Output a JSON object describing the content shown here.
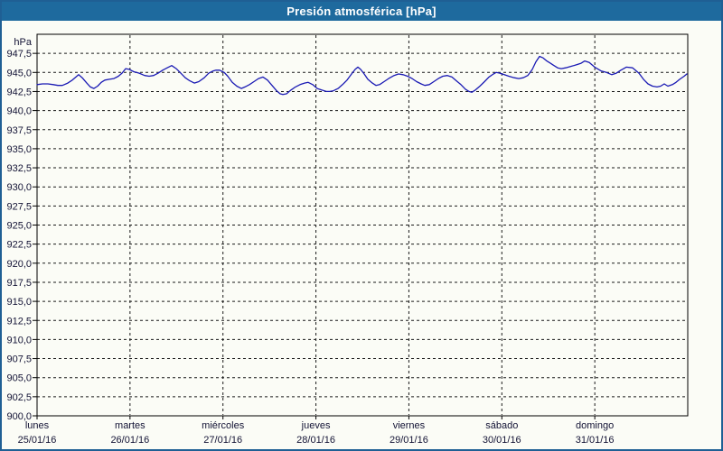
{
  "window": {
    "title": "Presión atmosférica [hPa]"
  },
  "colors": {
    "frame_border": "#1f5f94",
    "titlebar_bg": "#1e6a9e",
    "titlebar_text": "#ffffff",
    "chart_bg": "#fbfcf6",
    "plot_border": "#000000",
    "grid": "#1a1a1a",
    "axis_text": "#131335",
    "line": "#1a1ab4"
  },
  "chart_data": {
    "type": "line",
    "title": "Presión atmosférica [hPa]",
    "unit_label": "hPa",
    "xlabel": "",
    "ylabel": "",
    "ylim": [
      900,
      950
    ],
    "y_tick_step": 2.5,
    "y_tick_labels": [
      "947,5",
      "945,0",
      "942,5",
      "940,0",
      "937,5",
      "935,0",
      "932,5",
      "930,0",
      "927,5",
      "925,0",
      "922,5",
      "920,0",
      "917,5",
      "915,0",
      "912,5",
      "910,0",
      "907,5",
      "905,0",
      "902,5",
      "900,0"
    ],
    "grid": "dashed",
    "legend": "none",
    "x_categories": [
      {
        "day": "lunes",
        "date": "25/01/16"
      },
      {
        "day": "martes",
        "date": "26/01/16"
      },
      {
        "day": "miércoles",
        "date": "27/01/16"
      },
      {
        "day": "jueves",
        "date": "28/01/16"
      },
      {
        "day": "viernes",
        "date": "29/01/16"
      },
      {
        "day": "sábado",
        "date": "30/01/16"
      },
      {
        "day": "domingo",
        "date": "31/01/16"
      }
    ],
    "series": [
      {
        "name": "Presión atmosférica",
        "unit": "hPa",
        "color": "#1a1ab4",
        "x_unit": "days_since_monday_00h",
        "points": [
          [
            0,
            943.4
          ],
          [
            0.058,
            943.5
          ],
          [
            0.117,
            943.5
          ],
          [
            0.175,
            943.4
          ],
          [
            0.224,
            943.3
          ],
          [
            0.272,
            943.3
          ],
          [
            0.331,
            943.6
          ],
          [
            0.379,
            944.0
          ],
          [
            0.428,
            944.5
          ],
          [
            0.447,
            944.7
          ],
          [
            0.486,
            944.3
          ],
          [
            0.535,
            943.6
          ],
          [
            0.574,
            943.1
          ],
          [
            0.612,
            942.9
          ],
          [
            0.651,
            943.2
          ],
          [
            0.69,
            943.7
          ],
          [
            0.729,
            944.0
          ],
          [
            0.778,
            944.1
          ],
          [
            0.826,
            944.2
          ],
          [
            0.875,
            944.5
          ],
          [
            0.914,
            944.9
          ],
          [
            0.953,
            945.5
          ],
          [
            0.992,
            945.4
          ],
          [
            1.04,
            945.1
          ],
          [
            1.099,
            944.9
          ],
          [
            1.157,
            944.6
          ],
          [
            1.206,
            944.5
          ],
          [
            1.254,
            944.6
          ],
          [
            1.303,
            944.9
          ],
          [
            1.351,
            945.3
          ],
          [
            1.4,
            945.6
          ],
          [
            1.449,
            945.9
          ],
          [
            1.497,
            945.5
          ],
          [
            1.546,
            944.9
          ],
          [
            1.594,
            944.3
          ],
          [
            1.643,
            943.9
          ],
          [
            1.692,
            943.6
          ],
          [
            1.74,
            943.8
          ],
          [
            1.799,
            944.3
          ],
          [
            1.847,
            944.9
          ],
          [
            1.896,
            945.2
          ],
          [
            1.925,
            945.3
          ],
          [
            1.964,
            945.3
          ],
          [
            2.013,
            945.0
          ],
          [
            2.051,
            944.5
          ],
          [
            2.1,
            943.7
          ],
          [
            2.149,
            943.2
          ],
          [
            2.197,
            942.9
          ],
          [
            2.236,
            943.1
          ],
          [
            2.285,
            943.4
          ],
          [
            2.333,
            943.8
          ],
          [
            2.382,
            944.2
          ],
          [
            2.431,
            944.4
          ],
          [
            2.479,
            944.0
          ],
          [
            2.528,
            943.3
          ],
          [
            2.576,
            942.6
          ],
          [
            2.615,
            942.2
          ],
          [
            2.644,
            942.1
          ],
          [
            2.683,
            942.2
          ],
          [
            2.732,
            942.7
          ],
          [
            2.78,
            943.1
          ],
          [
            2.829,
            943.4
          ],
          [
            2.878,
            943.6
          ],
          [
            2.917,
            943.7
          ],
          [
            2.965,
            943.4
          ],
          [
            3.014,
            942.9
          ],
          [
            3.062,
            942.7
          ],
          [
            3.111,
            942.5
          ],
          [
            3.15,
            942.5
          ],
          [
            3.189,
            942.6
          ],
          [
            3.238,
            942.9
          ],
          [
            3.286,
            943.4
          ],
          [
            3.335,
            944.0
          ],
          [
            3.383,
            944.8
          ],
          [
            3.422,
            945.4
          ],
          [
            3.451,
            945.7
          ],
          [
            3.481,
            945.4
          ],
          [
            3.519,
            944.8
          ],
          [
            3.558,
            944.1
          ],
          [
            3.607,
            943.6
          ],
          [
            3.646,
            943.3
          ],
          [
            3.685,
            943.4
          ],
          [
            3.733,
            943.8
          ],
          [
            3.782,
            944.2
          ],
          [
            3.84,
            944.6
          ],
          [
            3.889,
            944.8
          ],
          [
            3.937,
            944.7
          ],
          [
            3.986,
            944.5
          ],
          [
            4.035,
            944.2
          ],
          [
            4.083,
            943.8
          ],
          [
            4.132,
            943.5
          ],
          [
            4.171,
            943.3
          ],
          [
            4.219,
            943.4
          ],
          [
            4.268,
            943.8
          ],
          [
            4.317,
            944.2
          ],
          [
            4.365,
            944.5
          ],
          [
            4.414,
            944.6
          ],
          [
            4.463,
            944.4
          ],
          [
            4.511,
            943.9
          ],
          [
            4.56,
            943.4
          ],
          [
            4.608,
            942.8
          ],
          [
            4.647,
            942.5
          ],
          [
            4.676,
            942.4
          ],
          [
            4.715,
            942.7
          ],
          [
            4.764,
            943.2
          ],
          [
            4.813,
            943.8
          ],
          [
            4.861,
            944.4
          ],
          [
            4.91,
            944.8
          ],
          [
            4.939,
            945.0
          ],
          [
            4.978,
            944.9
          ],
          [
            5.026,
            944.7
          ],
          [
            5.075,
            944.5
          ],
          [
            5.133,
            944.3
          ],
          [
            5.182,
            944.2
          ],
          [
            5.231,
            944.3
          ],
          [
            5.279,
            944.6
          ],
          [
            5.328,
            945.4
          ],
          [
            5.367,
            946.4
          ],
          [
            5.406,
            947.1
          ],
          [
            5.444,
            946.9
          ],
          [
            5.483,
            946.5
          ],
          [
            5.522,
            946.2
          ],
          [
            5.561,
            945.9
          ],
          [
            5.6,
            945.6
          ],
          [
            5.639,
            945.5
          ],
          [
            5.687,
            945.6
          ],
          [
            5.746,
            945.8
          ],
          [
            5.804,
            946.0
          ],
          [
            5.853,
            946.2
          ],
          [
            5.892,
            946.5
          ],
          [
            5.94,
            946.3
          ],
          [
            5.999,
            945.7
          ],
          [
            6.067,
            945.2
          ],
          [
            6.125,
            945.0
          ],
          [
            6.183,
            944.7
          ],
          [
            6.232,
            944.9
          ],
          [
            6.281,
            945.3
          ],
          [
            6.339,
            945.7
          ],
          [
            6.407,
            945.6
          ],
          [
            6.475,
            944.9
          ],
          [
            6.524,
            944.1
          ],
          [
            6.572,
            943.5
          ],
          [
            6.621,
            943.2
          ],
          [
            6.669,
            943.1
          ],
          [
            6.708,
            943.2
          ],
          [
            6.747,
            943.5
          ],
          [
            6.786,
            943.2
          ],
          [
            6.835,
            943.4
          ],
          [
            6.874,
            943.7
          ],
          [
            6.913,
            944.1
          ],
          [
            6.961,
            944.5
          ],
          [
            6.99,
            944.8
          ]
        ]
      }
    ]
  }
}
